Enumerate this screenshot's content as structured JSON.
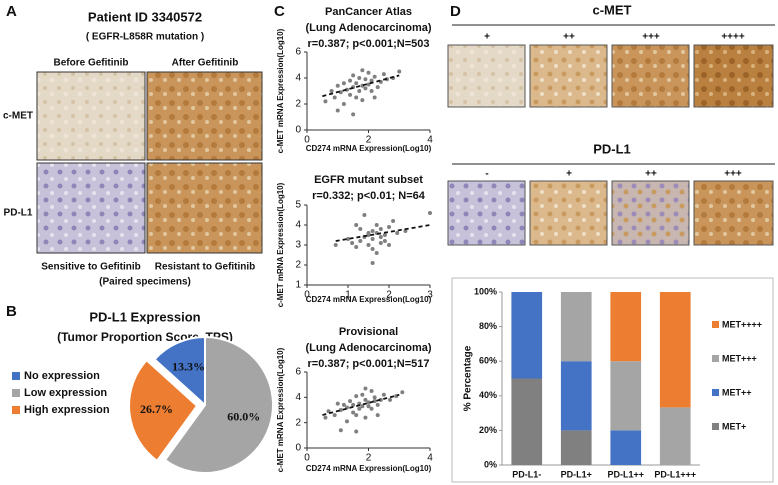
{
  "panel_a": {
    "label": "A",
    "title": "Patient ID 3340572",
    "subtitle": "( EGFR-L858R mutation )",
    "columns": [
      "Before Gefitinib",
      "After Gefitinib"
    ],
    "rows": [
      "c-MET",
      "PD-L1"
    ],
    "captions": [
      "Sensitive to Gefitinib",
      "Resistant to Gefitinib"
    ],
    "note": "(Paired specimens)"
  },
  "panel_b": {
    "label": "B"
  },
  "panel_c": {
    "label": "C"
  },
  "panel_d": {
    "label": "D",
    "sections": [
      {
        "title": "c-MET",
        "grades": [
          "+",
          "++",
          "+++",
          "++++"
        ]
      },
      {
        "title": "PD-L1",
        "grades": [
          "-",
          "+",
          "++",
          "+++"
        ]
      }
    ]
  },
  "chart_data": [
    {
      "type": "pie",
      "title": "PD-L1 Expression",
      "subtitle": "(Tumor Proportion Score, TPS)",
      "categories": [
        "No expression",
        "Low expression",
        "High expression"
      ],
      "values": [
        13.3,
        60.0,
        26.7
      ],
      "value_labels": [
        "13.3%",
        "60.0%",
        "26.7%"
      ],
      "colors": [
        "#4472c4",
        "#a5a5a5",
        "#ed7d31"
      ],
      "exploded": "High expression",
      "legend": "left"
    },
    {
      "type": "scatter",
      "title": "PanCancer Atlas",
      "subtitle": "(Lung Adenocarcinoma)",
      "annotation": "r=0.387; p<0.001;N=503",
      "xlabel": "CD274 mRNA Expression(Log10)",
      "ylabel": "c-MET  mRNA Expression(Log10)",
      "xlim": [
        0,
        4
      ],
      "ylim": [
        0,
        6
      ],
      "xticks": [
        0,
        2,
        4
      ],
      "yticks": [
        0,
        2,
        4,
        6
      ],
      "color": "#808080",
      "x": [
        0.6,
        0.8,
        0.9,
        1.0,
        1.1,
        1.2,
        1.2,
        1.3,
        1.4,
        1.4,
        1.5,
        1.5,
        1.6,
        1.6,
        1.7,
        1.7,
        1.8,
        1.8,
        1.9,
        1.9,
        2.0,
        2.0,
        2.1,
        2.1,
        2.2,
        2.3,
        2.4,
        2.5,
        2.6,
        2.8,
        3.0,
        1.0,
        1.5,
        2.2,
        1.8
      ],
      "y": [
        2.2,
        3.0,
        2.5,
        3.4,
        2.9,
        3.6,
        2.0,
        3.1,
        3.8,
        2.7,
        3.3,
        4.2,
        2.5,
        3.6,
        3.0,
        4.0,
        3.4,
        2.3,
        3.9,
        3.2,
        3.5,
        4.4,
        3.0,
        3.8,
        4.1,
        3.3,
        3.7,
        4.3,
        3.9,
        4.0,
        4.5,
        1.5,
        1.2,
        2.5,
        4.6
      ],
      "trendline": {
        "x": [
          0.5,
          3.0
        ],
        "y": [
          2.6,
          4.2
        ]
      }
    },
    {
      "type": "scatter",
      "title": "EGFR mutant subset",
      "annotation": "r=0.332; p<0.01; N=64",
      "xlabel": "CD274 mRNA Expression(Log10)",
      "ylabel": "c-MET  mRNA Expression(Log10)",
      "xlim": [
        0,
        3
      ],
      "ylim": [
        1,
        5
      ],
      "xticks": [
        0,
        1,
        2,
        3
      ],
      "yticks": [
        1,
        2,
        3,
        4,
        5
      ],
      "color": "#808080",
      "x": [
        0.7,
        1.0,
        1.1,
        1.2,
        1.3,
        1.3,
        1.4,
        1.4,
        1.5,
        1.5,
        1.5,
        1.6,
        1.6,
        1.6,
        1.7,
        1.7,
        1.7,
        1.8,
        1.8,
        1.9,
        1.9,
        2.0,
        2.0,
        2.1,
        2.2,
        2.4,
        1.2,
        1.6,
        1.8,
        3.0
      ],
      "y": [
        3.0,
        3.3,
        3.1,
        2.9,
        3.2,
        3.8,
        4.5,
        3.4,
        3.5,
        3.0,
        3.6,
        3.7,
        2.1,
        3.3,
        3.6,
        4.0,
        2.6,
        3.8,
        3.4,
        3.5,
        3.2,
        3.9,
        3.0,
        4.2,
        3.6,
        3.7,
        4.0,
        2.8,
        3.1,
        4.6
      ],
      "trendline": {
        "x": [
          0.7,
          3.0
        ],
        "y": [
          3.2,
          4.0
        ]
      }
    },
    {
      "type": "scatter",
      "title": "Provisional",
      "subtitle": "(Lung Adenocarcinoma)",
      "annotation": "r=0.387; p<0.001;N=517",
      "xlabel": "CD274 mRNA Expression(Log10)",
      "ylabel": "c-MET  mRNA Expression(Log10)",
      "xlim": [
        0,
        4
      ],
      "ylim": [
        0,
        6
      ],
      "xticks": [
        0,
        2,
        4
      ],
      "yticks": [
        0,
        2,
        4,
        6
      ],
      "color": "#808080",
      "x": [
        0.6,
        0.7,
        0.9,
        1.0,
        1.1,
        1.2,
        1.3,
        1.3,
        1.4,
        1.5,
        1.5,
        1.6,
        1.6,
        1.7,
        1.7,
        1.8,
        1.8,
        1.9,
        1.9,
        2.0,
        2.0,
        2.1,
        2.1,
        2.2,
        2.2,
        2.3,
        2.4,
        2.5,
        2.7,
        2.9,
        3.1,
        1.1,
        1.6,
        2.3,
        1.9
      ],
      "y": [
        2.4,
        2.9,
        2.6,
        3.5,
        3.0,
        3.4,
        2.1,
        3.2,
        3.7,
        2.8,
        3.4,
        4.1,
        2.6,
        3.5,
        3.1,
        4.2,
        3.3,
        2.4,
        3.8,
        3.3,
        3.6,
        4.5,
        3.1,
        3.7,
        4.0,
        3.4,
        3.8,
        4.2,
        3.8,
        4.1,
        4.4,
        1.4,
        1.3,
        2.6,
        4.7
      ],
      "trendline": {
        "x": [
          0.5,
          3.0
        ],
        "y": [
          2.6,
          4.2
        ]
      }
    },
    {
      "type": "bar",
      "stacked": true,
      "ylabel": "% Percentage",
      "categories": [
        "PD-L1-",
        "PD-L1+",
        "PD-L1++",
        "PD-L1+++"
      ],
      "series": [
        {
          "name": "MET+",
          "color": "#808080",
          "values": [
            50,
            20,
            0,
            0
          ]
        },
        {
          "name": "MET++",
          "color": "#4472c4",
          "values": [
            50,
            40,
            20,
            0
          ]
        },
        {
          "name": "MET+++",
          "color": "#a5a5a5",
          "values": [
            0,
            40,
            40,
            33.3
          ]
        },
        {
          "name": "MET++++",
          "color": "#ed7d31",
          "values": [
            0,
            0,
            40,
            66.7
          ]
        }
      ],
      "ylim": [
        0,
        100
      ],
      "yticks": [
        {
          "value": 0,
          "label": "0%"
        },
        {
          "value": 20,
          "label": "20%"
        },
        {
          "value": 40,
          "label": "40%"
        },
        {
          "value": 60,
          "label": "60%"
        },
        {
          "value": 80,
          "label": "80%"
        },
        {
          "value": 100,
          "label": "100%"
        }
      ],
      "legend": "right"
    }
  ]
}
